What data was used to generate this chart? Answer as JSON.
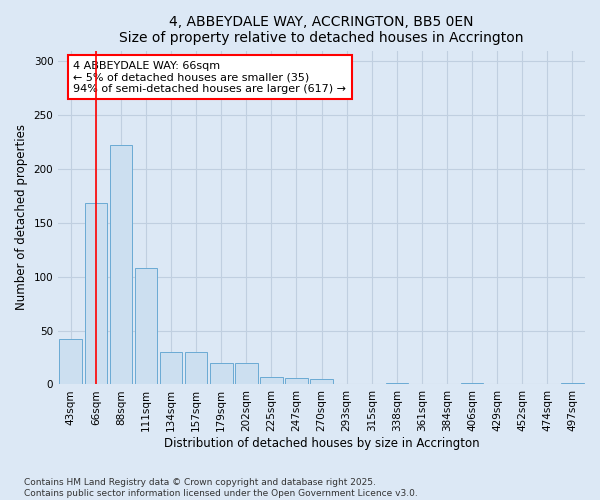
{
  "title": "4, ABBEYDALE WAY, ACCRINGTON, BB5 0EN",
  "subtitle": "Size of property relative to detached houses in Accrington",
  "xlabel": "Distribution of detached houses by size in Accrington",
  "ylabel": "Number of detached properties",
  "categories": [
    "43sqm",
    "66sqm",
    "88sqm",
    "111sqm",
    "134sqm",
    "157sqm",
    "179sqm",
    "202sqm",
    "225sqm",
    "247sqm",
    "270sqm",
    "293sqm",
    "315sqm",
    "338sqm",
    "361sqm",
    "384sqm",
    "406sqm",
    "429sqm",
    "452sqm",
    "474sqm",
    "497sqm"
  ],
  "values": [
    42,
    168,
    222,
    108,
    30,
    30,
    20,
    20,
    7,
    6,
    5,
    0,
    0,
    1,
    0,
    0,
    1,
    0,
    0,
    0,
    1
  ],
  "bar_color": "#ccdff0",
  "bar_edge_color": "#6aaad4",
  "red_line_x": 1,
  "annotation_text": "4 ABBEYDALE WAY: 66sqm\n← 5% of detached houses are smaller (35)\n94% of semi-detached houses are larger (617) →",
  "annotation_box_color": "white",
  "annotation_box_edge_color": "red",
  "ylim": [
    0,
    310
  ],
  "yticks": [
    0,
    50,
    100,
    150,
    200,
    250,
    300
  ],
  "background_color": "#dce8f5",
  "plot_bg_color": "#dce8f5",
  "grid_color": "#c0cfe0",
  "footer_text": "Contains HM Land Registry data © Crown copyright and database right 2025.\nContains public sector information licensed under the Open Government Licence v3.0.",
  "title_fontsize": 10,
  "xlabel_fontsize": 8.5,
  "ylabel_fontsize": 8.5,
  "tick_fontsize": 7.5,
  "annotation_fontsize": 8,
  "footer_fontsize": 6.5
}
